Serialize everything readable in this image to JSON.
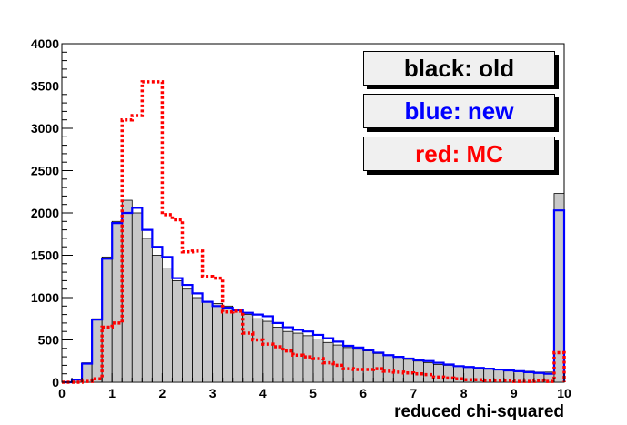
{
  "chart_data": {
    "type": "histogram",
    "xlabel": "reduced chi-squared",
    "ylabel": "",
    "xlim": [
      0,
      10
    ],
    "ylim": [
      0,
      4000
    ],
    "x_ticks": [
      0,
      1,
      2,
      3,
      4,
      5,
      6,
      7,
      8,
      9,
      10
    ],
    "y_ticks": [
      0,
      500,
      1000,
      1500,
      2000,
      2500,
      3000,
      3500,
      4000
    ],
    "bin_width": 0.2,
    "bin_edges_start": 0,
    "grid": false,
    "legend": [
      {
        "label": "black: old",
        "color": "#000000"
      },
      {
        "label": "blue: new",
        "color": "#0000ff"
      },
      {
        "label": "red: MC",
        "color": "#ff0000"
      }
    ],
    "series": [
      {
        "name": "old",
        "style": "filled-gray",
        "color": "#000000",
        "fill": "#c8c8c8",
        "values": [
          0,
          30,
          230,
          750,
          1480,
          1900,
          2150,
          2000,
          1700,
          1500,
          1350,
          1200,
          1100,
          1000,
          950,
          930,
          900,
          860,
          800,
          750,
          720,
          650,
          600,
          580,
          550,
          510,
          470,
          440,
          410,
          390,
          370,
          340,
          320,
          300,
          270,
          250,
          230,
          210,
          200,
          190,
          180,
          170,
          160,
          150,
          140,
          130,
          130,
          120,
          120,
          2230
        ]
      },
      {
        "name": "new",
        "style": "step",
        "color": "#0000ff",
        "values": [
          0,
          30,
          220,
          740,
          1460,
          1880,
          2000,
          2060,
          1800,
          1600,
          1480,
          1230,
          1150,
          1050,
          950,
          900,
          880,
          850,
          820,
          800,
          780,
          700,
          650,
          620,
          600,
          560,
          520,
          480,
          430,
          410,
          380,
          350,
          320,
          300,
          280,
          260,
          250,
          230,
          210,
          190,
          180,
          170,
          160,
          150,
          140,
          130,
          120,
          110,
          100,
          2030
        ]
      },
      {
        "name": "MC",
        "style": "dotted-step",
        "color": "#ff0000",
        "values": [
          0,
          0,
          10,
          40,
          650,
          700,
          3100,
          3150,
          3550,
          3550,
          1980,
          1920,
          1540,
          1550,
          1250,
          1230,
          830,
          840,
          580,
          500,
          450,
          420,
          370,
          320,
          300,
          280,
          230,
          200,
          160,
          150,
          150,
          160,
          130,
          120,
          110,
          100,
          90,
          60,
          50,
          40,
          30,
          30,
          20,
          20,
          20,
          10,
          10,
          20,
          10,
          350
        ],
        "bin_width_override": 0.1
      }
    ]
  }
}
